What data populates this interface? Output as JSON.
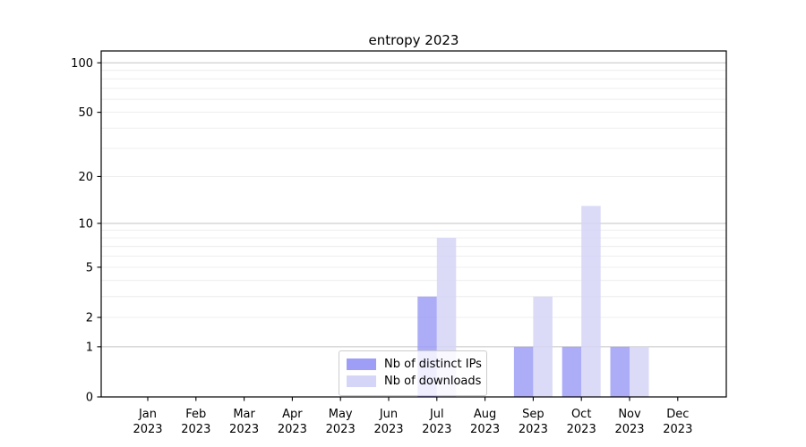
{
  "title": "entropy 2023",
  "chart_data": {
    "type": "bar",
    "title": "entropy 2023",
    "categories": [
      "Jan",
      "Feb",
      "Mar",
      "Apr",
      "May",
      "Jun",
      "Jul",
      "Aug",
      "Sep",
      "Oct",
      "Nov",
      "Dec"
    ],
    "category_year": "2023",
    "series": [
      {
        "name": "Nb of distinct IPs",
        "color": "#9e9ef6",
        "values": [
          0,
          0,
          0,
          0,
          0,
          0,
          3,
          0,
          1,
          1,
          1,
          0
        ]
      },
      {
        "name": "Nb of downloads",
        "color": "#d5d5f7",
        "values": [
          0,
          0,
          0,
          0,
          0,
          0,
          8,
          0,
          3,
          13,
          1,
          0
        ]
      }
    ],
    "xlabel": "",
    "ylabel": "",
    "yscale": "log1p",
    "ylim": [
      0,
      118
    ],
    "y_tick_labels": [
      0,
      1,
      2,
      5,
      10,
      20,
      50,
      100
    ],
    "y_major_gridlines": [
      1,
      10,
      100
    ],
    "y_minor_gridlines": [
      2,
      3,
      4,
      5,
      6,
      7,
      8,
      9,
      20,
      30,
      40,
      50,
      60,
      70,
      80,
      90
    ],
    "grid": "horizontal",
    "legend_position": "lower center"
  },
  "colors": {
    "major_grid": "#c3c3c3",
    "minor_grid": "#ececec",
    "axis": "#000000",
    "text": "#000000"
  }
}
